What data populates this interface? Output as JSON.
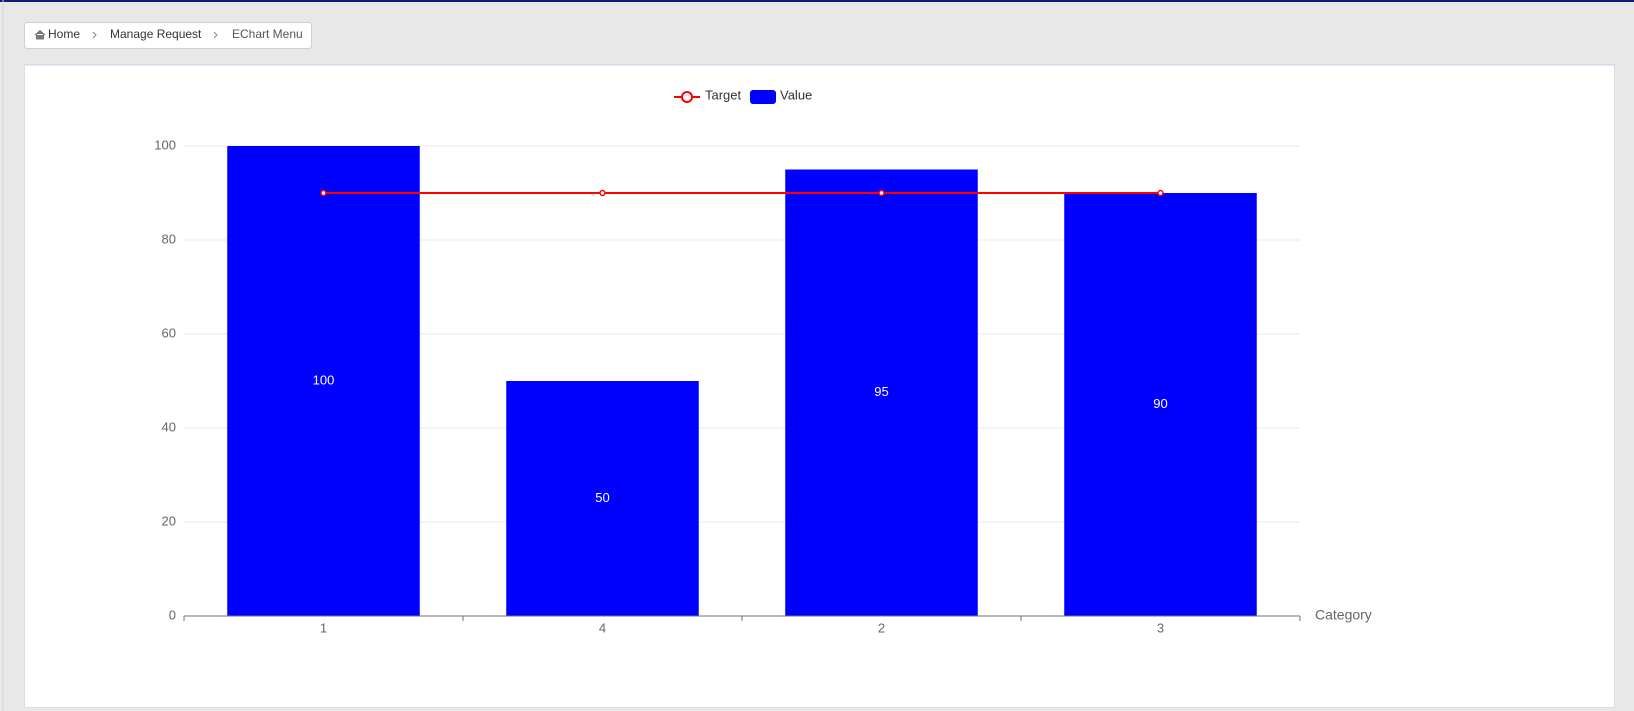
{
  "breadcrumb": [
    "Home",
    "Manage Request",
    "EChart Menu"
  ],
  "chart_data": {
    "type": "bar",
    "categories": [
      "1",
      "4",
      "2",
      "3"
    ],
    "x_label": "Category",
    "series": [
      {
        "name": "Target",
        "type": "line",
        "color": "#ff0000",
        "values": [
          90,
          90,
          90,
          90
        ]
      },
      {
        "name": "Value",
        "type": "bar",
        "color": "#0000ff",
        "values": [
          100,
          50,
          95,
          90
        ]
      }
    ],
    "ylim": [
      0,
      100
    ],
    "yticks": [
      0,
      20,
      40,
      60,
      80,
      100
    ],
    "grid": true
  }
}
